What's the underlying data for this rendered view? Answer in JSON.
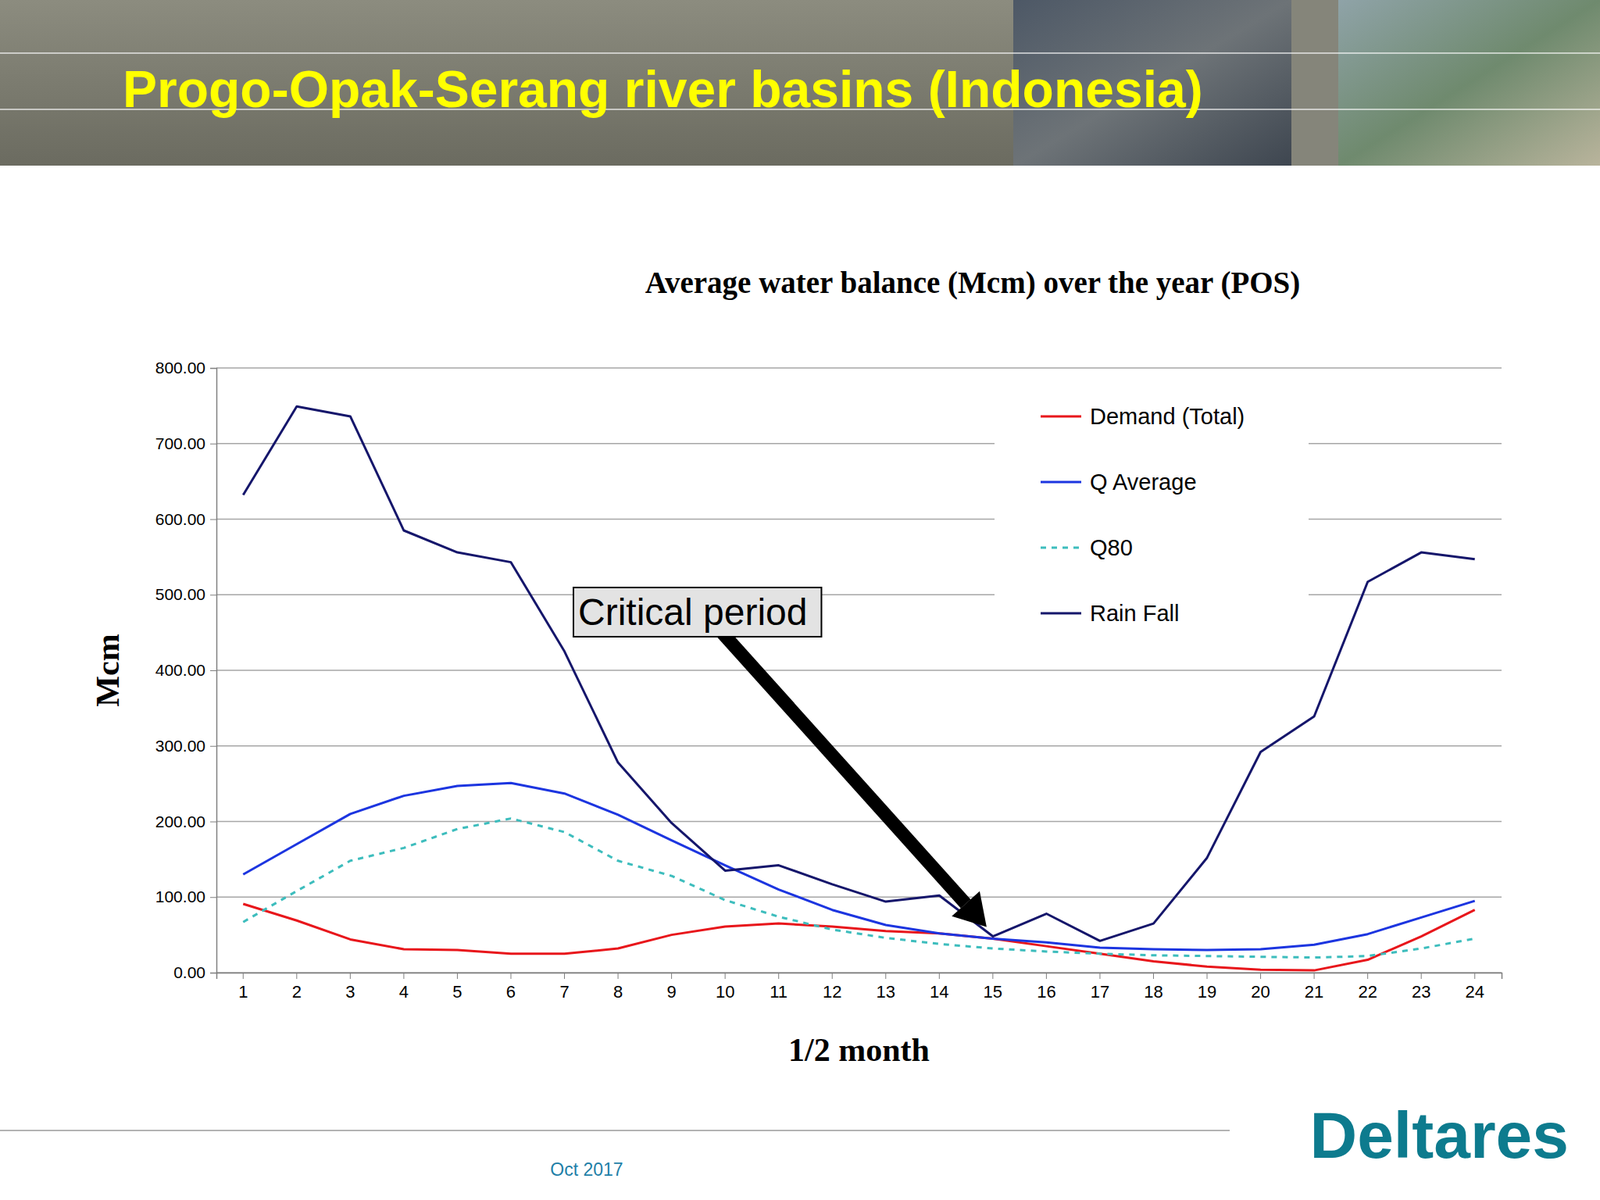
{
  "header": {
    "title": "Progo-Opak-Serang river basins (Indonesia)"
  },
  "chart_data": {
    "type": "line",
    "title": "Average water balance (Mcm) over the year (POS)",
    "x_label": "1/2 month",
    "y_label": "Mcm",
    "categories": [
      "1",
      "2",
      "3",
      "4",
      "5",
      "6",
      "7",
      "8",
      "9",
      "10",
      "11",
      "12",
      "13",
      "14",
      "15",
      "16",
      "17",
      "18",
      "19",
      "20",
      "21",
      "22",
      "23",
      "24"
    ],
    "series": [
      {
        "name": "Demand (Total)",
        "color": "#e8161b",
        "line_style": "solid",
        "values": [
          91,
          69,
          44,
          31,
          30,
          25,
          25,
          32,
          50,
          61,
          65,
          61,
          55,
          52,
          45,
          35,
          25,
          15,
          8,
          4,
          3,
          17,
          48,
          83
        ]
      },
      {
        "name": "Q Average",
        "color": "#1c35e0",
        "line_style": "solid",
        "values": [
          130,
          170,
          210,
          234,
          247,
          251,
          237,
          209,
          175,
          142,
          110,
          83,
          63,
          52,
          45,
          40,
          33,
          31,
          30,
          31,
          37,
          51,
          73,
          95
        ]
      },
      {
        "name": "Q80",
        "color": "#3dbdbd",
        "line_style": "dashed",
        "values": [
          67,
          108,
          148,
          165,
          190,
          204,
          186,
          148,
          128,
          96,
          74,
          57,
          46,
          38,
          32,
          28,
          25,
          23,
          22,
          21,
          20,
          22,
          32,
          45
        ]
      },
      {
        "name": "Rain Fall",
        "color": "#15166b",
        "line_style": "solid",
        "values": [
          632,
          749,
          736,
          585,
          556,
          543,
          425,
          278,
          198,
          135,
          142,
          117,
          94,
          102,
          48,
          78,
          42,
          65,
          152,
          292,
          339,
          517,
          556,
          547
        ]
      }
    ],
    "ylim": [
      0,
      800
    ],
    "yticks": [
      {
        "value": 0,
        "label": "0.00"
      },
      {
        "value": 100,
        "label": "100.00"
      },
      {
        "value": 200,
        "label": "200.00"
      },
      {
        "value": 300,
        "label": "300.00"
      },
      {
        "value": 400,
        "label": "400.00"
      },
      {
        "value": 500,
        "label": "500.00"
      },
      {
        "value": 600,
        "label": "600.00"
      },
      {
        "value": 700,
        "label": "700.00"
      },
      {
        "value": 800,
        "label": "800.00"
      }
    ],
    "grid": true,
    "legend": "top-right",
    "annotations": [
      {
        "text": "Critical period",
        "x": "15"
      }
    ]
  },
  "footer": {
    "date": "Oct 2017",
    "logo": "Deltares"
  }
}
